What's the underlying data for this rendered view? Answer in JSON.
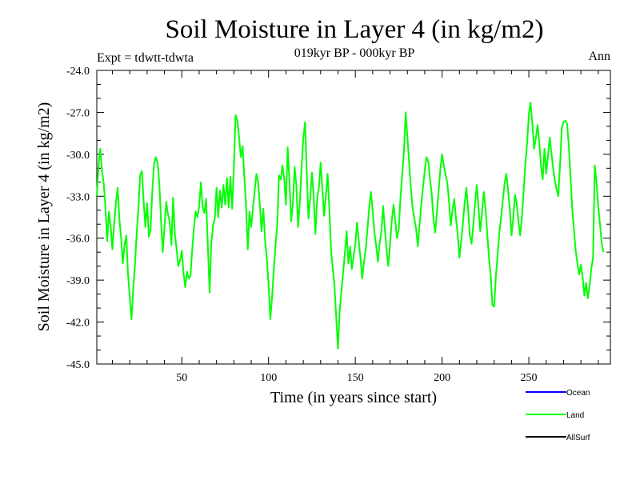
{
  "chart_data": {
    "type": "line",
    "title": "Soil Moisture in Layer 4 (in kg/m2)",
    "subtitle": "019kyr BP - 000kyr BP",
    "left_note": "Expt = tdwtt-tdwta",
    "right_note": "Ann",
    "xlabel": "Time (in years since start)",
    "ylabel": "Soil Moisture in Layer 4 (in kg/m2)",
    "xlim": [
      1,
      297
    ],
    "ylim": [
      -45.0,
      -24.0
    ],
    "x_ticks": [
      50,
      100,
      150,
      200,
      250
    ],
    "x_tick_labels": [
      "50",
      "100",
      "150",
      "200",
      "250"
    ],
    "y_ticks": [
      -45.0,
      -42.0,
      -39.0,
      -36.0,
      -33.0,
      -30.0,
      -27.0,
      -24.0
    ],
    "y_tick_labels": [
      "-45.0",
      "-42.0",
      "-39.0",
      "-36.0",
      "-33.0",
      "-30.0",
      "-27.0",
      "-24.0"
    ],
    "legend": [
      {
        "name": "Ocean",
        "color": "#0000ff"
      },
      {
        "name": "Land",
        "color": "#00ff00"
      },
      {
        "name": "AllSurf",
        "color": "#000000"
      }
    ],
    "series": [
      {
        "name": "Land",
        "color": "#00ff00",
        "x_start": 1,
        "x_step": 1,
        "values": [
          -33.0,
          -30.8,
          -29.6,
          -31.2,
          -32.1,
          -33.8,
          -36.2,
          -34.1,
          -35.2,
          -36.8,
          -35.0,
          -33.5,
          -32.4,
          -34.6,
          -36.0,
          -37.8,
          -36.5,
          -35.8,
          -38.6,
          -40.2,
          -41.8,
          -39.7,
          -37.9,
          -35.6,
          -33.8,
          -31.5,
          -31.2,
          -33.4,
          -35.2,
          -33.5,
          -35.9,
          -35.4,
          -32.6,
          -30.7,
          -30.2,
          -30.6,
          -32.0,
          -34.8,
          -37.0,
          -35.2,
          -33.4,
          -34.3,
          -34.8,
          -36.5,
          -33.1,
          -35.7,
          -36.8,
          -38.0,
          -37.6,
          -36.9,
          -38.5,
          -39.5,
          -38.4,
          -38.9,
          -38.7,
          -36.8,
          -35.2,
          -34.1,
          -34.5,
          -33.7,
          -32.0,
          -33.8,
          -34.2,
          -33.2,
          -36.5,
          -39.9,
          -36.4,
          -35.1,
          -34.6,
          -32.4,
          -34.5,
          -32.6,
          -33.8,
          -32.2,
          -33.6,
          -31.7,
          -33.8,
          -31.6,
          -33.9,
          -31.0,
          -27.2,
          -27.6,
          -28.8,
          -30.2,
          -29.4,
          -31.6,
          -33.6,
          -36.8,
          -34.1,
          -35.2,
          -33.8,
          -32.6,
          -31.4,
          -32.0,
          -33.7,
          -35.5,
          -33.9,
          -36.2,
          -37.5,
          -39.3,
          -41.8,
          -40.2,
          -38.3,
          -36.5,
          -35.0,
          -31.5,
          -31.8,
          -30.8,
          -31.7,
          -33.6,
          -29.5,
          -31.9,
          -34.8,
          -33.5,
          -30.9,
          -32.2,
          -35.2,
          -33.4,
          -31.0,
          -28.9,
          -27.7,
          -31.2,
          -34.6,
          -33.1,
          -31.3,
          -33.0,
          -35.7,
          -33.1,
          -32.4,
          -30.6,
          -32.5,
          -34.4,
          -33.0,
          -31.4,
          -33.8,
          -36.9,
          -38.2,
          -39.4,
          -41.7,
          -43.9,
          -41.2,
          -39.8,
          -38.4,
          -37.0,
          -35.5,
          -37.8,
          -36.6,
          -38.2,
          -37.3,
          -36.4,
          -34.9,
          -36.2,
          -37.5,
          -38.9,
          -37.7,
          -36.8,
          -35.3,
          -33.8,
          -32.7,
          -34.1,
          -35.6,
          -36.5,
          -37.7,
          -36.4,
          -35.5,
          -33.7,
          -35.3,
          -36.8,
          -38.0,
          -36.5,
          -34.8,
          -33.6,
          -34.8,
          -36.0,
          -35.4,
          -33.1,
          -31.5,
          -29.8,
          -27.0,
          -28.7,
          -30.6,
          -32.4,
          -33.8,
          -34.6,
          -35.3,
          -36.6,
          -35.1,
          -33.6,
          -32.3,
          -31.2,
          -30.2,
          -30.5,
          -31.7,
          -32.8,
          -34.6,
          -35.6,
          -34.2,
          -32.6,
          -31.1,
          -30.0,
          -30.8,
          -31.5,
          -32.0,
          -33.4,
          -35.1,
          -34.0,
          -33.2,
          -34.6,
          -35.7,
          -37.4,
          -36.2,
          -35.0,
          -33.5,
          -32.4,
          -33.9,
          -35.8,
          -36.4,
          -35.0,
          -33.5,
          -32.2,
          -33.9,
          -35.5,
          -34.2,
          -32.7,
          -33.8,
          -35.6,
          -37.4,
          -38.6,
          -40.8,
          -40.9,
          -38.7,
          -37.2,
          -35.6,
          -34.5,
          -33.3,
          -32.1,
          -31.4,
          -32.5,
          -33.9,
          -35.8,
          -34.6,
          -32.9,
          -33.5,
          -34.8,
          -35.8,
          -34.5,
          -32.6,
          -30.7,
          -29.2,
          -27.1,
          -26.3,
          -27.8,
          -29.6,
          -28.9,
          -27.9,
          -29.1,
          -30.8,
          -31.8,
          -29.6,
          -31.4,
          -30.2,
          -28.8,
          -29.9,
          -31.0,
          -31.9,
          -32.5,
          -33.0,
          -30.7,
          -28.1,
          -27.7,
          -27.6,
          -27.8,
          -29.3,
          -31.6,
          -33.9,
          -35.4,
          -36.9,
          -37.8,
          -38.6,
          -37.9,
          -38.8,
          -40.1,
          -39.2,
          -40.3,
          -39.4,
          -38.2,
          -37.4,
          -30.8,
          -32.0,
          -33.7,
          -35.0,
          -36.4,
          -37.0
        ]
      },
      {
        "name": "Ocean",
        "color": "#0000ff",
        "values": []
      },
      {
        "name": "AllSurf",
        "color": "#000000",
        "values": []
      }
    ]
  }
}
